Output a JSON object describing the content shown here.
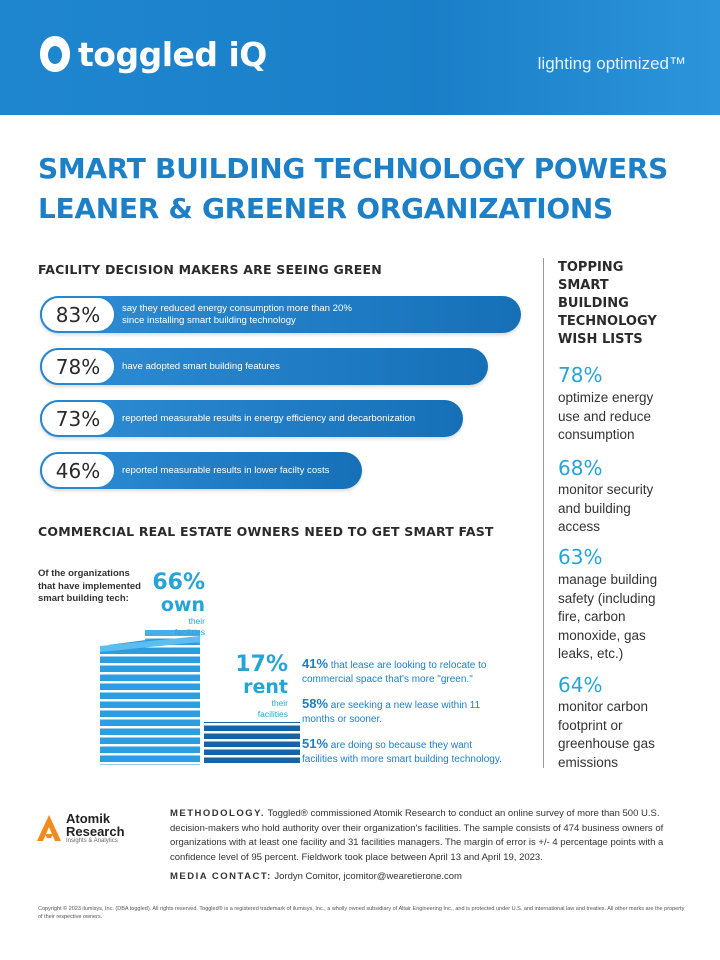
{
  "header": {
    "logo_text": "toggled iQ",
    "tagline": "lighting optimized™"
  },
  "title": {
    "line1": "SMART BUILDING TECHNOLOGY POWERS",
    "line2": "LEANER & GREENER ORGANIZATIONS"
  },
  "facility": {
    "heading": "FACILITY DECISION MAKERS ARE SEEING GREEN",
    "stats": [
      {
        "pct": "83%",
        "text_line1": "say they reduced energy consumption more than 20%",
        "text_line2": "since installing smart building technology",
        "value": 83
      },
      {
        "pct": "78%",
        "text_line1": "have adopted smart building features",
        "text_line2": "",
        "value": 78
      },
      {
        "pct": "73%",
        "text_line1": "reported measurable results in energy efficiency and decarbonization",
        "text_line2": "",
        "value": 73
      },
      {
        "pct": "46%",
        "text_line1": "reported measurable results in lower facilty costs",
        "text_line2": "",
        "value": 46
      }
    ]
  },
  "wishlist": {
    "heading_lines": [
      "TOPPING",
      "SMART",
      "BUILDING",
      "TECHNOLOGY",
      "WISH LISTS"
    ],
    "items": [
      {
        "pct": "78%",
        "lines": [
          "optimize energy",
          "use and reduce",
          "consumption"
        ]
      },
      {
        "pct": "68%",
        "lines": [
          "monitor security",
          "and building",
          "access"
        ]
      },
      {
        "pct": "63%",
        "lines": [
          "manage building",
          "safety (including",
          "fire, carbon",
          "monoxide, gas",
          "leaks, etc.)"
        ]
      },
      {
        "pct": "64%",
        "lines": [
          "monitor carbon",
          "footprint or",
          "greenhouse gas",
          "emissions"
        ]
      }
    ]
  },
  "real_estate": {
    "heading": "COMMERCIAL REAL ESTATE OWNERS NEED TO GET SMART FAST",
    "intro_lines": [
      "Of the organizations",
      "that have implemented",
      "smart building tech:"
    ],
    "own_pct": "66%",
    "own_word": "own",
    "own_caption": [
      "their",
      "facilities"
    ],
    "rent_pct": "17%",
    "rent_word": "rent",
    "rent_caption": [
      "their",
      "facilities"
    ],
    "stats": [
      {
        "pct": "41%",
        "line1": " that lease are looking to relocate to",
        "line2": "commercial space that's more \"green.\""
      },
      {
        "pct": "58%",
        "line1": " are seeking a new lease within 11",
        "line2": "months or sooner."
      },
      {
        "pct": "51%",
        "line1": " are doing so because they want",
        "line2": "facilities with more smart building technology."
      }
    ]
  },
  "footer": {
    "atomik_name_1": "Atomik",
    "atomik_name_2": "Research",
    "atomik_sub": "Insights & Analytics",
    "methodology_label": "METHODOLOGY.",
    "methodology_text": " Toggled® commissioned Atomik Research to conduct an online survey of more than 500 U.S. decision-makers who hold authority over their organization's facilities. The sample consists of 474 business owners of organizations with at least one facility and 31 facilities managers. The margin of error is +/- 4 percentage points with a confidence level of 95 percent. Fieldwork took place between April 13 and April 19, 2023.",
    "contact_label": "MEDIA CONTACT:",
    "contact_text": "  Jordyn Comitor, jcomitor@wearetierone.com",
    "copyright": "Copyright © 2023 ilumisys, Inc. (DBA toggled). All rights reserved. Toggled® is a registered trademark of ilumisys, Inc., a wholly owned subsidiary of Altair Engineering Inc., and is protected under U.S. and international law and treaties. All other marks are the property of their respective owners."
  },
  "colors": {
    "brand_blue": "#1d7fc6",
    "accent_cyan": "#26a4d8"
  }
}
